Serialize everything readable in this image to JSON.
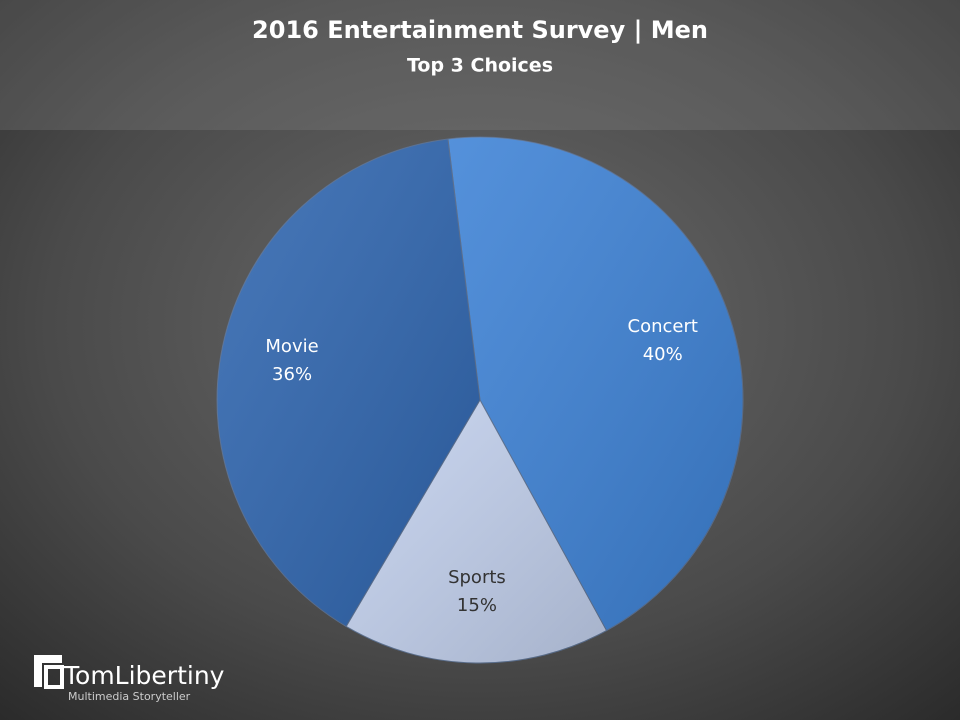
{
  "chart_data": {
    "type": "pie",
    "title": "2016 Entertainment Survey | Men",
    "subtitle": "Top 3 Choices",
    "categories": [
      "Concert",
      "Sports",
      "Movie"
    ],
    "values": [
      40,
      15,
      36
    ],
    "value_labels": [
      "40%",
      "15%",
      "36%"
    ],
    "colors": [
      "#3d82d6",
      "#c3d1ee",
      "#2f66b0"
    ]
  },
  "branding": {
    "name": "TomLibertiny",
    "tagline": "Multimedia Storyteller"
  }
}
